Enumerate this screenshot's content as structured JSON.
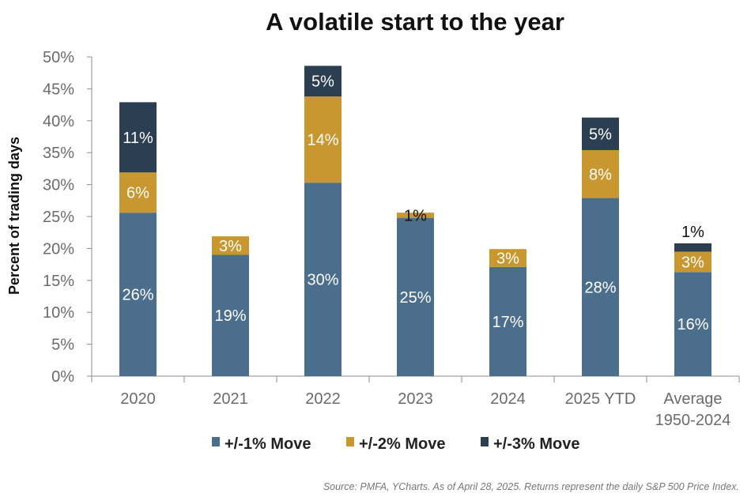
{
  "chart_data": {
    "type": "bar",
    "stacked": true,
    "title": "A volatile start to the year",
    "ylabel": "Percent of trading days",
    "xlabel": "",
    "ylim": [
      0,
      50
    ],
    "y_ticks": [
      "0%",
      "5%",
      "10%",
      "15%",
      "20%",
      "25%",
      "30%",
      "35%",
      "40%",
      "45%",
      "50%"
    ],
    "categories": [
      [
        "2020"
      ],
      [
        "2021"
      ],
      [
        "2022"
      ],
      [
        "2023"
      ],
      [
        "2024"
      ],
      [
        "2025 YTD"
      ],
      [
        "Average",
        "1950-2024"
      ]
    ],
    "series": [
      {
        "name": "+/-1% Move",
        "color": "#4b6e8c",
        "values": [
          25.6,
          19.0,
          30.3,
          24.8,
          17.1,
          27.9,
          16.3
        ],
        "labels": [
          "26%",
          "19%",
          "30%",
          "25%",
          "17%",
          "28%",
          "16%"
        ]
      },
      {
        "name": "+/-2% Move",
        "color": "#c9972f",
        "values": [
          6.3,
          2.9,
          13.5,
          0.8,
          2.8,
          7.5,
          3.2
        ],
        "labels": [
          "6%",
          "3%",
          "14%",
          "1%",
          "3%",
          "8%",
          "3%"
        ]
      },
      {
        "name": "+/-3% Move",
        "color": "#2b3e52",
        "values": [
          11.0,
          0,
          4.8,
          0,
          0,
          5.1,
          1.3
        ],
        "labels": [
          "11%",
          "",
          "5%",
          "",
          "",
          "5%",
          "1%"
        ]
      }
    ],
    "grid": false,
    "legend_position": "bottom"
  },
  "source_note": "Source: PMFA, YCharts. As of April 28, 2025. Returns represent the daily S&P 500 Price Index."
}
